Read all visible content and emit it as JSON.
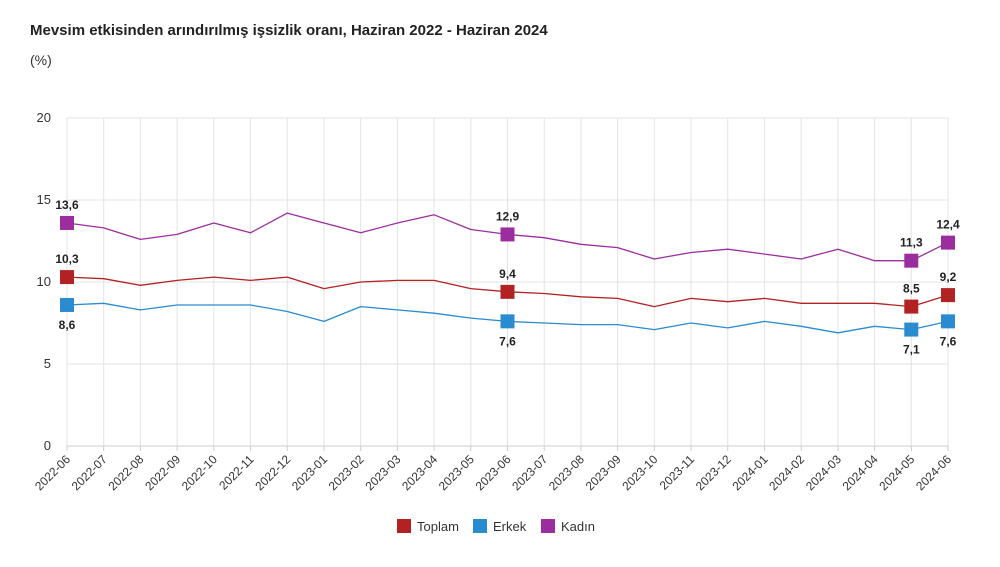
{
  "chart_data": {
    "type": "line",
    "title": "Mevsim etkisinden arındırılmış işsizlik oranı, Haziran 2022 - Haziran 2024",
    "unit": "(%)",
    "xlabel": "",
    "ylabel": "",
    "ylim": [
      0,
      20
    ],
    "yticks": [
      "0",
      "5",
      "10",
      "15",
      "20"
    ],
    "grid": true,
    "legend_position": "bottom",
    "categories": [
      "2022-06",
      "2022-07",
      "2022-08",
      "2022-09",
      "2022-10",
      "2022-11",
      "2022-12",
      "2023-01",
      "2023-02",
      "2023-03",
      "2023-04",
      "2023-05",
      "2023-06",
      "2023-07",
      "2023-08",
      "2023-09",
      "2023-10",
      "2023-11",
      "2023-12",
      "2024-01",
      "2024-02",
      "2024-03",
      "2024-04",
      "2024-05",
      "2024-06"
    ],
    "series": [
      {
        "name": "Toplam",
        "color": "#b22222",
        "values": [
          10.3,
          10.2,
          9.8,
          10.1,
          10.3,
          10.1,
          10.3,
          9.6,
          10.0,
          10.1,
          10.1,
          9.6,
          9.4,
          9.3,
          9.1,
          9.0,
          8.5,
          9.0,
          8.8,
          9.0,
          8.7,
          8.7,
          8.7,
          8.5,
          9.2
        ]
      },
      {
        "name": "Erkek",
        "color": "#2a8bd0",
        "values": [
          8.6,
          8.7,
          8.3,
          8.6,
          8.6,
          8.6,
          8.2,
          7.6,
          8.5,
          8.3,
          8.1,
          7.8,
          7.6,
          7.5,
          7.4,
          7.4,
          7.1,
          7.5,
          7.2,
          7.6,
          7.3,
          6.9,
          7.3,
          7.1,
          7.6
        ]
      },
      {
        "name": "Kadın",
        "color": "#9b2d9f",
        "values": [
          13.6,
          13.3,
          12.6,
          12.9,
          13.6,
          13.0,
          14.2,
          13.6,
          13.0,
          13.6,
          14.1,
          13.2,
          12.9,
          12.7,
          12.3,
          12.1,
          11.4,
          11.8,
          12.0,
          11.7,
          11.4,
          12.0,
          11.3,
          11.3,
          12.4
        ]
      }
    ],
    "highlights": [
      {
        "series": 0,
        "index": 0,
        "label": "10,3",
        "pos": "above"
      },
      {
        "series": 0,
        "index": 12,
        "label": "9,4",
        "pos": "above"
      },
      {
        "series": 0,
        "index": 23,
        "label": "8,5",
        "pos": "above"
      },
      {
        "series": 0,
        "index": 24,
        "label": "9,2",
        "pos": "above"
      },
      {
        "series": 1,
        "index": 0,
        "label": "8,6",
        "pos": "below"
      },
      {
        "series": 1,
        "index": 12,
        "label": "7,6",
        "pos": "below"
      },
      {
        "series": 1,
        "index": 23,
        "label": "7,1",
        "pos": "below"
      },
      {
        "series": 1,
        "index": 24,
        "label": "7,6",
        "pos": "below"
      },
      {
        "series": 2,
        "index": 0,
        "label": "13,6",
        "pos": "above"
      },
      {
        "series": 2,
        "index": 12,
        "label": "12,9",
        "pos": "above"
      },
      {
        "series": 2,
        "index": 23,
        "label": "11,3",
        "pos": "above"
      },
      {
        "series": 2,
        "index": 24,
        "label": "12,4",
        "pos": "above"
      }
    ]
  }
}
